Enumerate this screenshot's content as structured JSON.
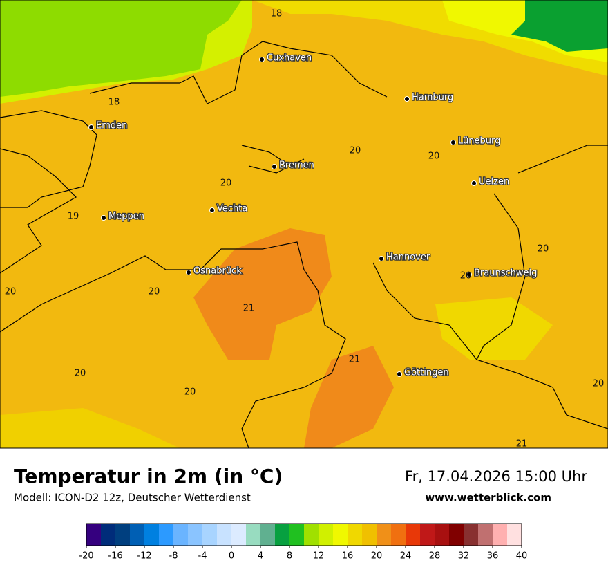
{
  "map": {
    "cities": [
      "Cuxhaven",
      "Hamburg",
      "Emden",
      "Lüneburg",
      "Bremen",
      "Uelzen",
      "Vechta",
      "Meppen",
      "Hannover",
      "Osnabrück",
      "Braunschweig",
      "Göttingen"
    ],
    "temperature_labels": [
      18,
      18,
      20,
      20,
      20,
      19,
      20,
      20,
      20,
      20,
      21,
      21,
      20,
      20,
      20,
      21
    ]
  },
  "footer": {
    "title": "Temperatur in 2m (in °C)",
    "model": "Modell: ICON-D2 12z, Deutscher Wetterdienst",
    "date": "Fr, 17.04.2026 15:00 Uhr",
    "website": "www.wetterblick.com"
  },
  "colorbar": {
    "ticks": [
      -20,
      -16,
      -12,
      -8,
      -4,
      0,
      4,
      8,
      12,
      16,
      20,
      24,
      28,
      32,
      36,
      40
    ],
    "colors": [
      "#35007f",
      "#002c7a",
      "#003f7f",
      "#005fb4",
      "#0080e0",
      "#2c9aff",
      "#6ab4ff",
      "#8ac4ff",
      "#a8d4ff",
      "#c8e2ff",
      "#dcebff",
      "#98dcc0",
      "#60b090",
      "#07a040",
      "#20c020",
      "#a0e000",
      "#d0f000",
      "#f0f800",
      "#f0d800",
      "#f0c000",
      "#f09018",
      "#f07010",
      "#e83808",
      "#c01818",
      "#a81010",
      "#800000",
      "#883030",
      "#c07070",
      "#ffb0b0",
      "#ffe0e0"
    ]
  }
}
